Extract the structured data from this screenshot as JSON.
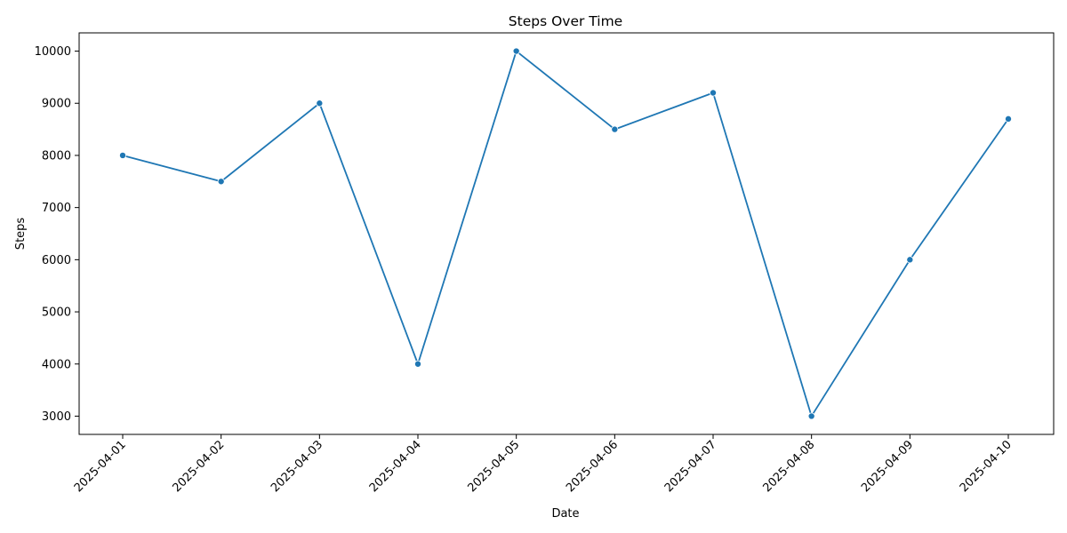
{
  "chart_data": {
    "type": "line",
    "title": "Steps Over Time",
    "xlabel": "Date",
    "ylabel": "Steps",
    "categories": [
      "2025-04-01",
      "2025-04-02",
      "2025-04-03",
      "2025-04-04",
      "2025-04-05",
      "2025-04-06",
      "2025-04-07",
      "2025-04-08",
      "2025-04-09",
      "2025-04-10"
    ],
    "series": [
      {
        "values": [
          8000,
          7500,
          9000,
          4000,
          10000,
          8500,
          9200,
          3000,
          6000,
          8700
        ],
        "color": "#1f77b4"
      }
    ],
    "yticks": [
      3000,
      4000,
      5000,
      6000,
      7000,
      8000,
      9000,
      10000
    ],
    "ylim": [
      2650,
      10350
    ],
    "grid": false,
    "marker": "circle"
  }
}
